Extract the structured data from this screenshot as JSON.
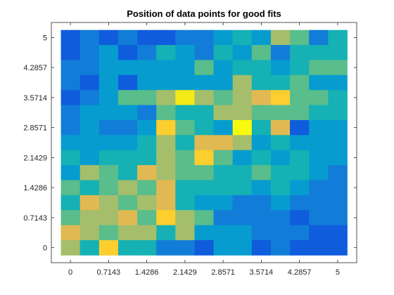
{
  "chart_data": {
    "type": "heatmap",
    "title": "Position of data points for good fits",
    "xlabel": "",
    "ylabel": "",
    "x_ticks": [
      "0",
      "0.7143",
      "1.4286",
      "2.1429",
      "2.8571",
      "3.5714",
      "4.2857",
      "5"
    ],
    "y_ticks": [
      "0",
      "0.7143",
      "1.4286",
      "2.1429",
      "2.8571",
      "3.5714",
      "4.2857",
      "5"
    ],
    "xlim": [
      -0.3571,
      5.3571
    ],
    "ylim": [
      -0.3571,
      5.3571
    ],
    "x_centers": [
      0,
      0.3571,
      0.7143,
      1.0714,
      1.4286,
      1.7857,
      2.1429,
      2.5,
      2.8571,
      3.2143,
      3.5714,
      3.9286,
      4.2857,
      4.6429,
      5
    ],
    "y_centers": [
      0,
      0.3571,
      0.7143,
      1.0714,
      1.4286,
      1.7857,
      2.1429,
      2.5,
      2.8571,
      3.2143,
      3.5714,
      3.9286,
      4.2857,
      4.6429,
      5
    ],
    "colormap": "parula",
    "color_range": [
      0,
      10
    ],
    "grid": false,
    "values_rows_top_to_bottom": [
      [
        1,
        2,
        1,
        2,
        1,
        1,
        2,
        2,
        3,
        4,
        3,
        6,
        5,
        2,
        4
      ],
      [
        1,
        2,
        3,
        1,
        2,
        4,
        3,
        2,
        4,
        3,
        5,
        2,
        4,
        4,
        4
      ],
      [
        2,
        2,
        3,
        3,
        3,
        3,
        3,
        5,
        3,
        4,
        4,
        3,
        4,
        5,
        5
      ],
      [
        2,
        1,
        3,
        1,
        3,
        3,
        3,
        3,
        3,
        6,
        4,
        4,
        5,
        3,
        3
      ],
      [
        1,
        2,
        3,
        5,
        5,
        6,
        9,
        6,
        5,
        6,
        7,
        8,
        5,
        5,
        4
      ],
      [
        2,
        3,
        3,
        3,
        2,
        5,
        4,
        4,
        6,
        6,
        5,
        5,
        5,
        4,
        4
      ],
      [
        2,
        3,
        2,
        2,
        3,
        8,
        5,
        4,
        3,
        10,
        4,
        7,
        1,
        3,
        3
      ],
      [
        3,
        3,
        3,
        3,
        4,
        6,
        4,
        7,
        7,
        6,
        3,
        4,
        3,
        3,
        3
      ],
      [
        4,
        3,
        4,
        4,
        4,
        6,
        5,
        8,
        5,
        3,
        4,
        3,
        4,
        3,
        3
      ],
      [
        3,
        6,
        5,
        4,
        7,
        6,
        5,
        5,
        4,
        4,
        5,
        4,
        4,
        3,
        2
      ],
      [
        5,
        4,
        5,
        6,
        5,
        7,
        4,
        4,
        4,
        4,
        3,
        4,
        3,
        2,
        2
      ],
      [
        4,
        7,
        6,
        5,
        6,
        7,
        4,
        3,
        3,
        2,
        2,
        3,
        2,
        2,
        2
      ],
      [
        5,
        6,
        6,
        7,
        5,
        8,
        6,
        5,
        2,
        2,
        2,
        2,
        1,
        2,
        2
      ],
      [
        7,
        6,
        5,
        6,
        6,
        4,
        6,
        3,
        3,
        3,
        2,
        2,
        2,
        1,
        1
      ],
      [
        6,
        4,
        8,
        4,
        4,
        2,
        2,
        1,
        3,
        3,
        1,
        2,
        1,
        1,
        1
      ]
    ]
  }
}
